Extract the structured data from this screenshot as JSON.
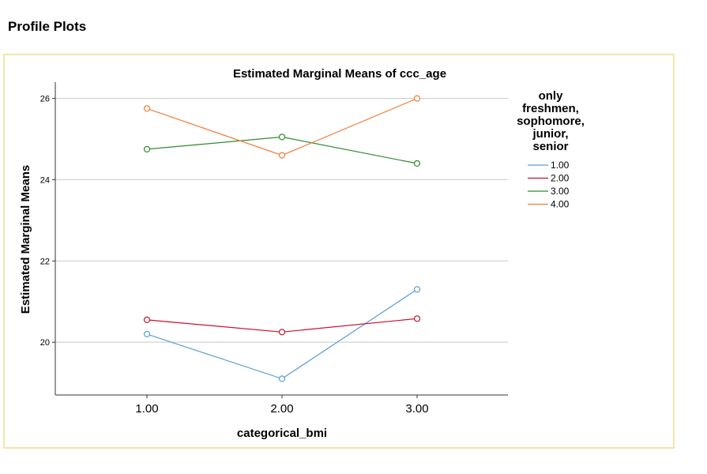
{
  "section_title": "Profile Plots",
  "chart_data": {
    "type": "line",
    "title": "Estimated Marginal Means of ccc_age",
    "xlabel": "categorical_bmi",
    "ylabel": "Estimated Marginal Means",
    "categories": [
      "1.00",
      "2.00",
      "3.00"
    ],
    "yticks": [
      "20",
      "22",
      "24",
      "26"
    ],
    "ylim": [
      18.7,
      26.4
    ],
    "grid": true,
    "legend_title": [
      "only",
      "freshmen,",
      "sophomore,",
      "junior,",
      "senior"
    ],
    "legend_position": "right",
    "series": [
      {
        "name": "1.00",
        "color": "#5b9bd5",
        "values": [
          20.2,
          19.1,
          21.3
        ]
      },
      {
        "name": "2.00",
        "color": "#c8102e",
        "values": [
          20.55,
          20.25,
          20.58
        ]
      },
      {
        "name": "3.00",
        "color": "#2e8b2e",
        "values": [
          24.75,
          25.05,
          24.4
        ]
      },
      {
        "name": "4.00",
        "color": "#f07c3a",
        "values": [
          25.75,
          24.6,
          26.0
        ]
      }
    ]
  }
}
